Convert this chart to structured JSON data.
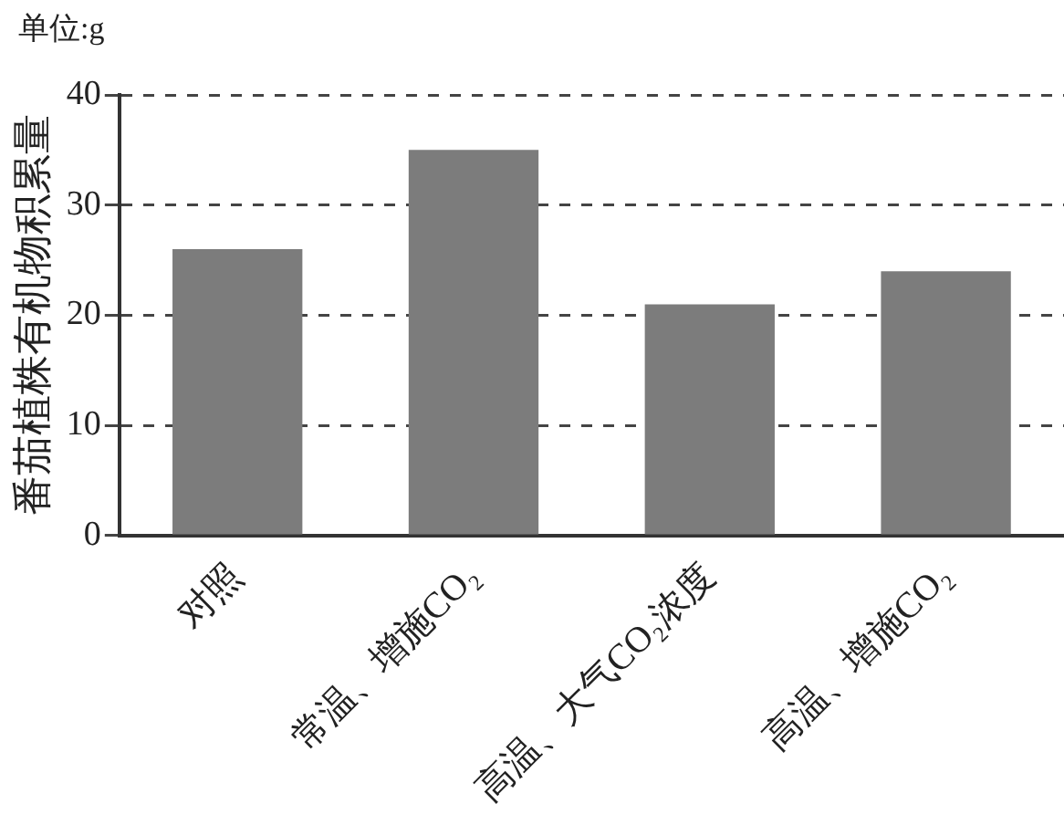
{
  "chart_data": {
    "type": "bar",
    "categories": [
      "对照",
      "常温、增施CO₂",
      "高温、大气CO₂浓度",
      "高温、增施CO₂"
    ],
    "values": [
      26,
      35,
      21,
      24
    ],
    "color": "#7c7c7c",
    "ylabel": "番茄植株有机物积累量",
    "annotations": [
      "单位:g"
    ],
    "ylim": [
      0,
      40
    ],
    "yticks": [
      0,
      10,
      20,
      30,
      40
    ],
    "grid": "y",
    "legend": false
  }
}
